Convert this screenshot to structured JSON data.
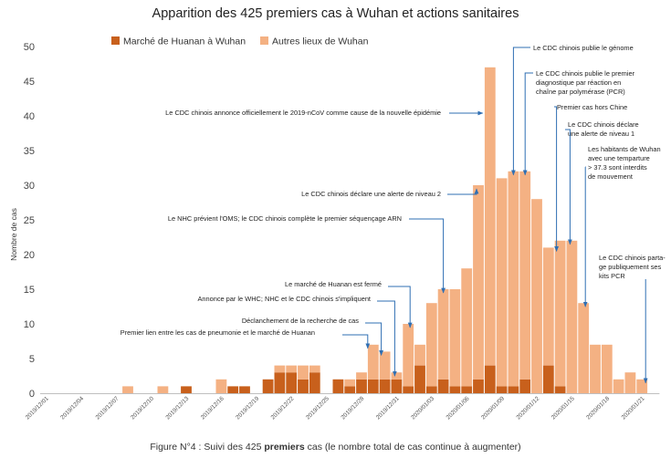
{
  "chart_data": {
    "type": "bar",
    "stacked": true,
    "title": "Apparition des 425 premiers cas à Wuhan et actions sanitaires",
    "ylabel": "Nombre de cas",
    "xlabel": "",
    "ylim": [
      0,
      50
    ],
    "yticks": [
      0,
      5,
      10,
      15,
      20,
      25,
      30,
      35,
      40,
      45,
      50
    ],
    "legend_position": "top",
    "grid": false,
    "colors": {
      "huanan": "#c8601c",
      "other": "#f4b183",
      "arrow": "#2f6fb3"
    },
    "x_tick_labels": [
      {
        "index": 0,
        "label": "2019/12/01"
      },
      {
        "index": 3,
        "label": "2019/12/04"
      },
      {
        "index": 6,
        "label": "2019/12/07"
      },
      {
        "index": 9,
        "label": "2019/12/10"
      },
      {
        "index": 12,
        "label": "2019/12/13"
      },
      {
        "index": 15,
        "label": "2019/12/16"
      },
      {
        "index": 18,
        "label": "2019/12/19"
      },
      {
        "index": 21,
        "label": "2019/12/22"
      },
      {
        "index": 24,
        "label": "2019/12/25"
      },
      {
        "index": 27,
        "label": "2019/12/28"
      },
      {
        "index": 30,
        "label": "2019/12/31"
      },
      {
        "index": 33,
        "label": "2020/01/03"
      },
      {
        "index": 36,
        "label": "2020/01/06"
      },
      {
        "index": 39,
        "label": "2020/01/09"
      },
      {
        "index": 42,
        "label": "2020/01/12"
      },
      {
        "index": 45,
        "label": "2020/01/15"
      },
      {
        "index": 48,
        "label": "2020/01/18"
      },
      {
        "index": 51,
        "label": "2020/01/21"
      }
    ],
    "categories": [
      "2019/12/01",
      "2019/12/02",
      "2019/12/03",
      "2019/12/04",
      "2019/12/05",
      "2019/12/06",
      "2019/12/07",
      "2019/12/08",
      "2019/12/09",
      "2019/12/10",
      "2019/12/11",
      "2019/12/12",
      "2019/12/13",
      "2019/12/14",
      "2019/12/15",
      "2019/12/16",
      "2019/12/17",
      "2019/12/18",
      "2019/12/19",
      "2019/12/20",
      "2019/12/21",
      "2019/12/22",
      "2019/12/23",
      "2019/12/24",
      "2019/12/25",
      "2019/12/26",
      "2019/12/27",
      "2019/12/28",
      "2019/12/29",
      "2019/12/30",
      "2019/12/31",
      "2020/01/01",
      "2020/01/02",
      "2020/01/03",
      "2020/01/04",
      "2020/01/05",
      "2020/01/06",
      "2020/01/07",
      "2020/01/08",
      "2020/01/09",
      "2020/01/10",
      "2020/01/11",
      "2020/01/12",
      "2020/01/13",
      "2020/01/14",
      "2020/01/15",
      "2020/01/16",
      "2020/01/17",
      "2020/01/18",
      "2020/01/19",
      "2020/01/20",
      "2020/01/21",
      "2020/01/22"
    ],
    "series": [
      {
        "name": "Marché de Huanan à Wuhan",
        "values": [
          0,
          0,
          0,
          0,
          0,
          0,
          0,
          0,
          0,
          0,
          0,
          0,
          1,
          0,
          0,
          0,
          1,
          1,
          0,
          2,
          3,
          3,
          2,
          3,
          0,
          2,
          1,
          2,
          2,
          2,
          2,
          1,
          4,
          1,
          2,
          1,
          1,
          2,
          4,
          1,
          1,
          2,
          0,
          4,
          1,
          0,
          0,
          0,
          0,
          0,
          0,
          0,
          0
        ]
      },
      {
        "name": "Autres lieux de Wuhan",
        "values": [
          0,
          0,
          0,
          0,
          0,
          0,
          0,
          1,
          0,
          0,
          1,
          0,
          0,
          0,
          0,
          2,
          0,
          0,
          0,
          0,
          1,
          1,
          2,
          1,
          0,
          0,
          1,
          1,
          5,
          4,
          1,
          9,
          3,
          12,
          13,
          14,
          17,
          28,
          43,
          30,
          31,
          30,
          28,
          17,
          21,
          22,
          13,
          7,
          7,
          2,
          3,
          2,
          0
        ]
      }
    ],
    "totals": [
      0,
      0,
      0,
      0,
      0,
      0,
      0,
      1,
      0,
      0,
      1,
      0,
      1,
      0,
      0,
      2,
      1,
      1,
      0,
      2,
      4,
      4,
      4,
      4,
      0,
      2,
      2,
      3,
      7,
      6,
      3,
      10,
      7,
      13,
      15,
      15,
      18,
      30,
      47,
      31,
      32,
      32,
      28,
      21,
      22,
      22,
      13,
      7,
      7,
      2,
      3,
      2,
      0
    ],
    "annotations": [
      {
        "text": [
          "Premier lien entre les cas de pneumonie et le marché de Huanan"
        ],
        "target_index": 28
      },
      {
        "text": [
          "Déclanchement de la recherche de cas"
        ],
        "target_index": 29
      },
      {
        "text": [
          "Annonce par le WHC; NHC et le CDC chinois s'impliquent"
        ],
        "target_index": 30
      },
      {
        "text": [
          "Le marché de Huanan est fermé"
        ],
        "target_index": 31
      },
      {
        "text": [
          "Le NHC prévient l'OMS; le CDC chinois complète le premier séquençage ARN"
        ],
        "target_index": 34
      },
      {
        "text": [
          "Le CDC chinois déclare une alerte de niveau 2"
        ],
        "target_index": 37
      },
      {
        "text": [
          "Le CDC chinois annonce officiellement le 2019-nCoV comme cause de la nouvelle épidémie"
        ],
        "target_index": 38
      },
      {
        "text": [
          "Le CDC chinois publie le génome"
        ],
        "target_index": 40
      },
      {
        "text": [
          "Le CDC chinois publie le premier",
          "diagnostique par réaction en",
          "chaîne par polymérase (PCR)"
        ],
        "target_index": 41
      },
      {
        "text": [
          "Premier cas hors Chine"
        ],
        "target_index": 44
      },
      {
        "text": [
          "Le CDC chinois déclare",
          "une alerte de niveau 1"
        ],
        "target_index": 45
      },
      {
        "text": [
          "Les habitants de Wuhan",
          "avec une temparture",
          "> 37.3 sont interdits",
          "de mouvement"
        ],
        "target_index": 46
      },
      {
        "text": [
          "Le CDC chinois parta-",
          "ge publiquement ses",
          "kits PCR"
        ],
        "target_index": 51
      }
    ]
  },
  "caption": {
    "prefix": "Figure N°4 : Suivi des 425 ",
    "bold": "premiers",
    "suffix": " cas (le nombre total de cas continue à augmenter)"
  }
}
